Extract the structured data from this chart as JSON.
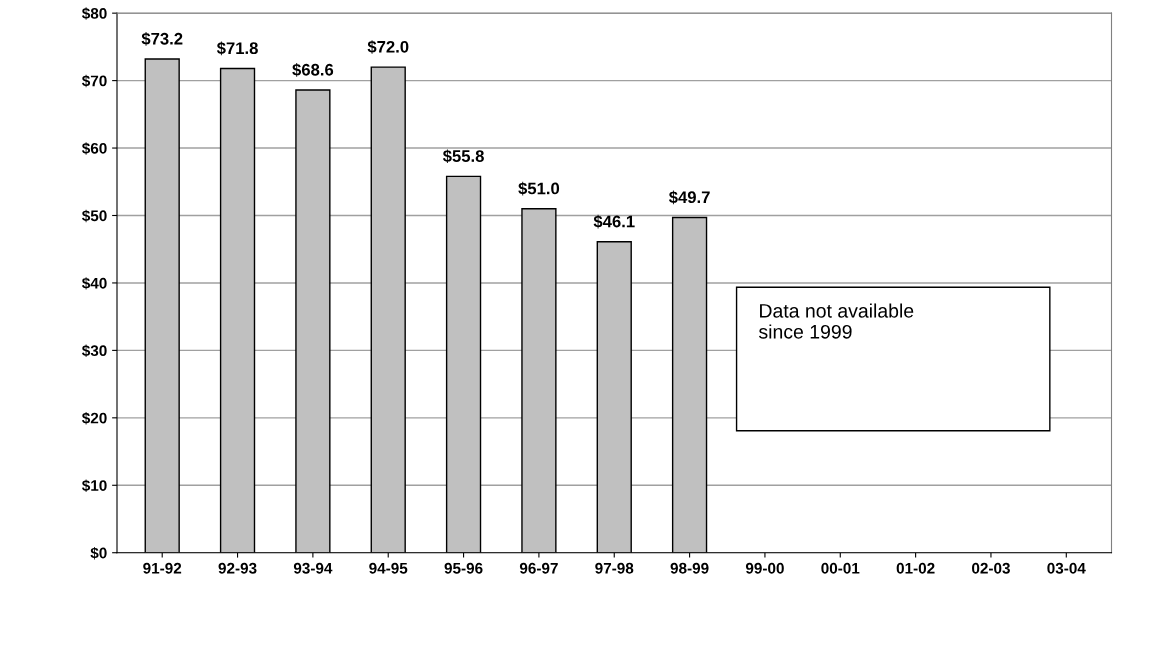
{
  "chart_data": {
    "type": "bar",
    "categories": [
      "91-92",
      "92-93",
      "93-94",
      "94-95",
      "95-96",
      "96-97",
      "97-98",
      "98-99",
      "99-00",
      "00-01",
      "01-02",
      "02-03",
      "03-04"
    ],
    "values": [
      73.2,
      71.8,
      68.6,
      72.0,
      55.8,
      51.0,
      46.1,
      49.7,
      null,
      null,
      null,
      null,
      null
    ],
    "value_labels": [
      "$73.2",
      "$71.8",
      "$68.6",
      "$72.0",
      "$55.8",
      "$51.0",
      "$46.1",
      "$49.7",
      null,
      null,
      null,
      null,
      null
    ],
    "color": "#c0c0c0",
    "ylim": [
      0,
      80
    ],
    "yticks": [
      {
        "value": 0,
        "label": "$0"
      },
      {
        "value": 10,
        "label": "$10"
      },
      {
        "value": 20,
        "label": "$20"
      },
      {
        "value": 30,
        "label": "$30"
      },
      {
        "value": 40,
        "label": "$40"
      },
      {
        "value": 50,
        "label": "$50"
      },
      {
        "value": 60,
        "label": "$60"
      },
      {
        "value": 70,
        "label": "$70"
      },
      {
        "value": 80,
        "label": "$80"
      }
    ],
    "grid": "y",
    "annotations": [
      "Data not available\nsince 1999"
    ]
  }
}
